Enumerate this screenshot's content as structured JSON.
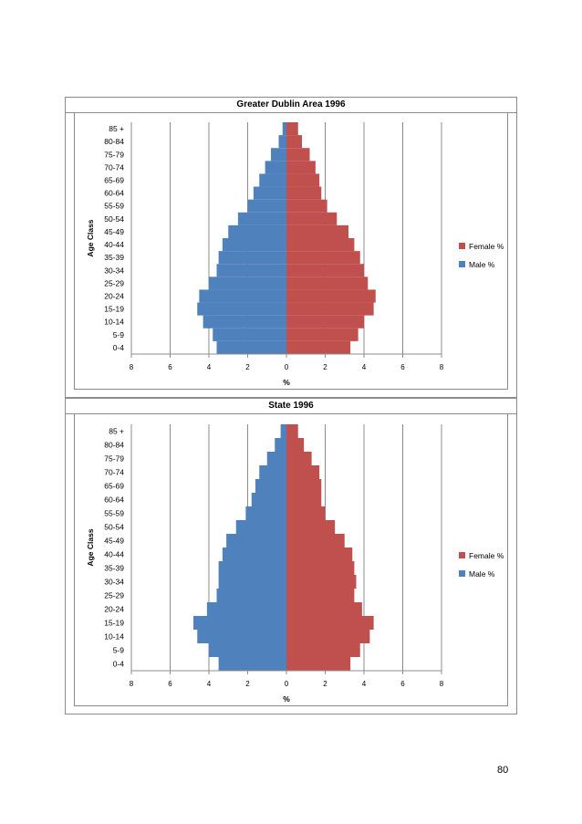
{
  "colors": {
    "female": "#c0504d",
    "male": "#4f81bd",
    "grid": "#8c8c8c",
    "axis": "#8c8c8c"
  },
  "page_number": "80",
  "chart_data": [
    {
      "type": "bar",
      "orientation": "horizontal-population-pyramid",
      "title": "Greater Dublin Area 1996",
      "xlabel": "%",
      "ylabel": "Age Class",
      "xlim": [
        -8,
        8
      ],
      "xticks": [
        "8",
        "6",
        "4",
        "2",
        "0",
        "2",
        "4",
        "6",
        "8"
      ],
      "grid": true,
      "legend_position": "right",
      "categories": [
        "0-4",
        "5-9",
        "10-14",
        "15-19",
        "20-24",
        "25-29",
        "30-34",
        "35-39",
        "40-44",
        "45-49",
        "50-54",
        "55-59",
        "60-64",
        "65-69",
        "70-74",
        "75-79",
        "80-84",
        "85 +"
      ],
      "series": [
        {
          "name": "Female %",
          "values": [
            3.3,
            3.7,
            4.0,
            4.5,
            4.6,
            4.2,
            4.0,
            3.8,
            3.5,
            3.2,
            2.6,
            2.1,
            1.8,
            1.7,
            1.5,
            1.2,
            0.8,
            0.6
          ]
        },
        {
          "name": "Male %",
          "values": [
            3.6,
            3.8,
            4.3,
            4.6,
            4.5,
            4.0,
            3.6,
            3.5,
            3.3,
            3.0,
            2.5,
            2.0,
            1.7,
            1.4,
            1.1,
            0.8,
            0.4,
            0.2
          ]
        }
      ]
    },
    {
      "type": "bar",
      "orientation": "horizontal-population-pyramid",
      "title": "State 1996",
      "xlabel": "%",
      "ylabel": "Age Class",
      "xlim": [
        -8,
        8
      ],
      "xticks": [
        "8",
        "6",
        "4",
        "2",
        "0",
        "2",
        "4",
        "6",
        "8"
      ],
      "grid": true,
      "legend_position": "right",
      "categories": [
        "0-4",
        "5-9",
        "10-14",
        "15-19",
        "20-24",
        "25-29",
        "30-34",
        "35-39",
        "40-44",
        "45-49",
        "50-54",
        "55-59",
        "60-64",
        "65-69",
        "70-74",
        "75-79",
        "80-84",
        "85 +"
      ],
      "series": [
        {
          "name": "Female %",
          "values": [
            3.3,
            3.8,
            4.3,
            4.5,
            3.9,
            3.5,
            3.6,
            3.5,
            3.4,
            3.0,
            2.5,
            2.0,
            1.8,
            1.8,
            1.7,
            1.3,
            0.9,
            0.6
          ]
        },
        {
          "name": "Male %",
          "values": [
            3.5,
            4.0,
            4.6,
            4.8,
            4.1,
            3.6,
            3.5,
            3.5,
            3.3,
            3.1,
            2.6,
            2.1,
            1.8,
            1.6,
            1.4,
            1.0,
            0.6,
            0.3
          ]
        }
      ]
    }
  ]
}
